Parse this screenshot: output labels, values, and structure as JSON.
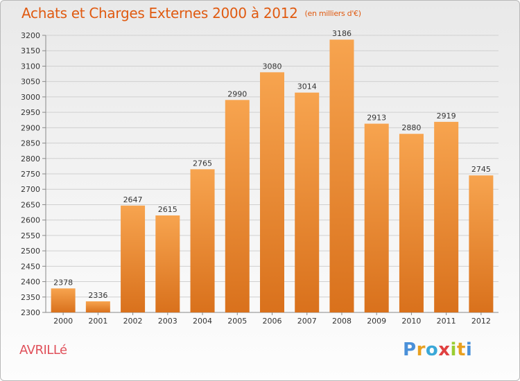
{
  "header": {
    "title": "Achats et Charges Externes 2000 à 2012",
    "unit": "(en milliers d'€)"
  },
  "footer": {
    "commune": "AVRILLé",
    "logo": "Proxiti"
  },
  "colors": {
    "title": "#e05a10",
    "commune": "#e0505a",
    "bar_top": "#f7a44f",
    "bar_bottom": "#d9711c",
    "grid": "#d0d0d0"
  },
  "chart_data": {
    "type": "bar",
    "title": "Achats et Charges Externes 2000 à 2012",
    "subtitle": "(en milliers d'€)",
    "xlabel": "",
    "ylabel": "",
    "categories": [
      "2000",
      "2001",
      "2002",
      "2003",
      "2004",
      "2005",
      "2006",
      "2007",
      "2008",
      "2009",
      "2010",
      "2011",
      "2012"
    ],
    "values": [
      2378,
      2336,
      2647,
      2615,
      2765,
      2990,
      3080,
      3014,
      3186,
      2913,
      2880,
      2919,
      2745
    ],
    "ylim": [
      2300,
      3200
    ],
    "yticks": [
      2300,
      2350,
      2400,
      2450,
      2500,
      2550,
      2600,
      2650,
      2700,
      2750,
      2800,
      2850,
      2900,
      2950,
      3000,
      3050,
      3100,
      3150,
      3200
    ],
    "grid": true,
    "legend": "none"
  }
}
